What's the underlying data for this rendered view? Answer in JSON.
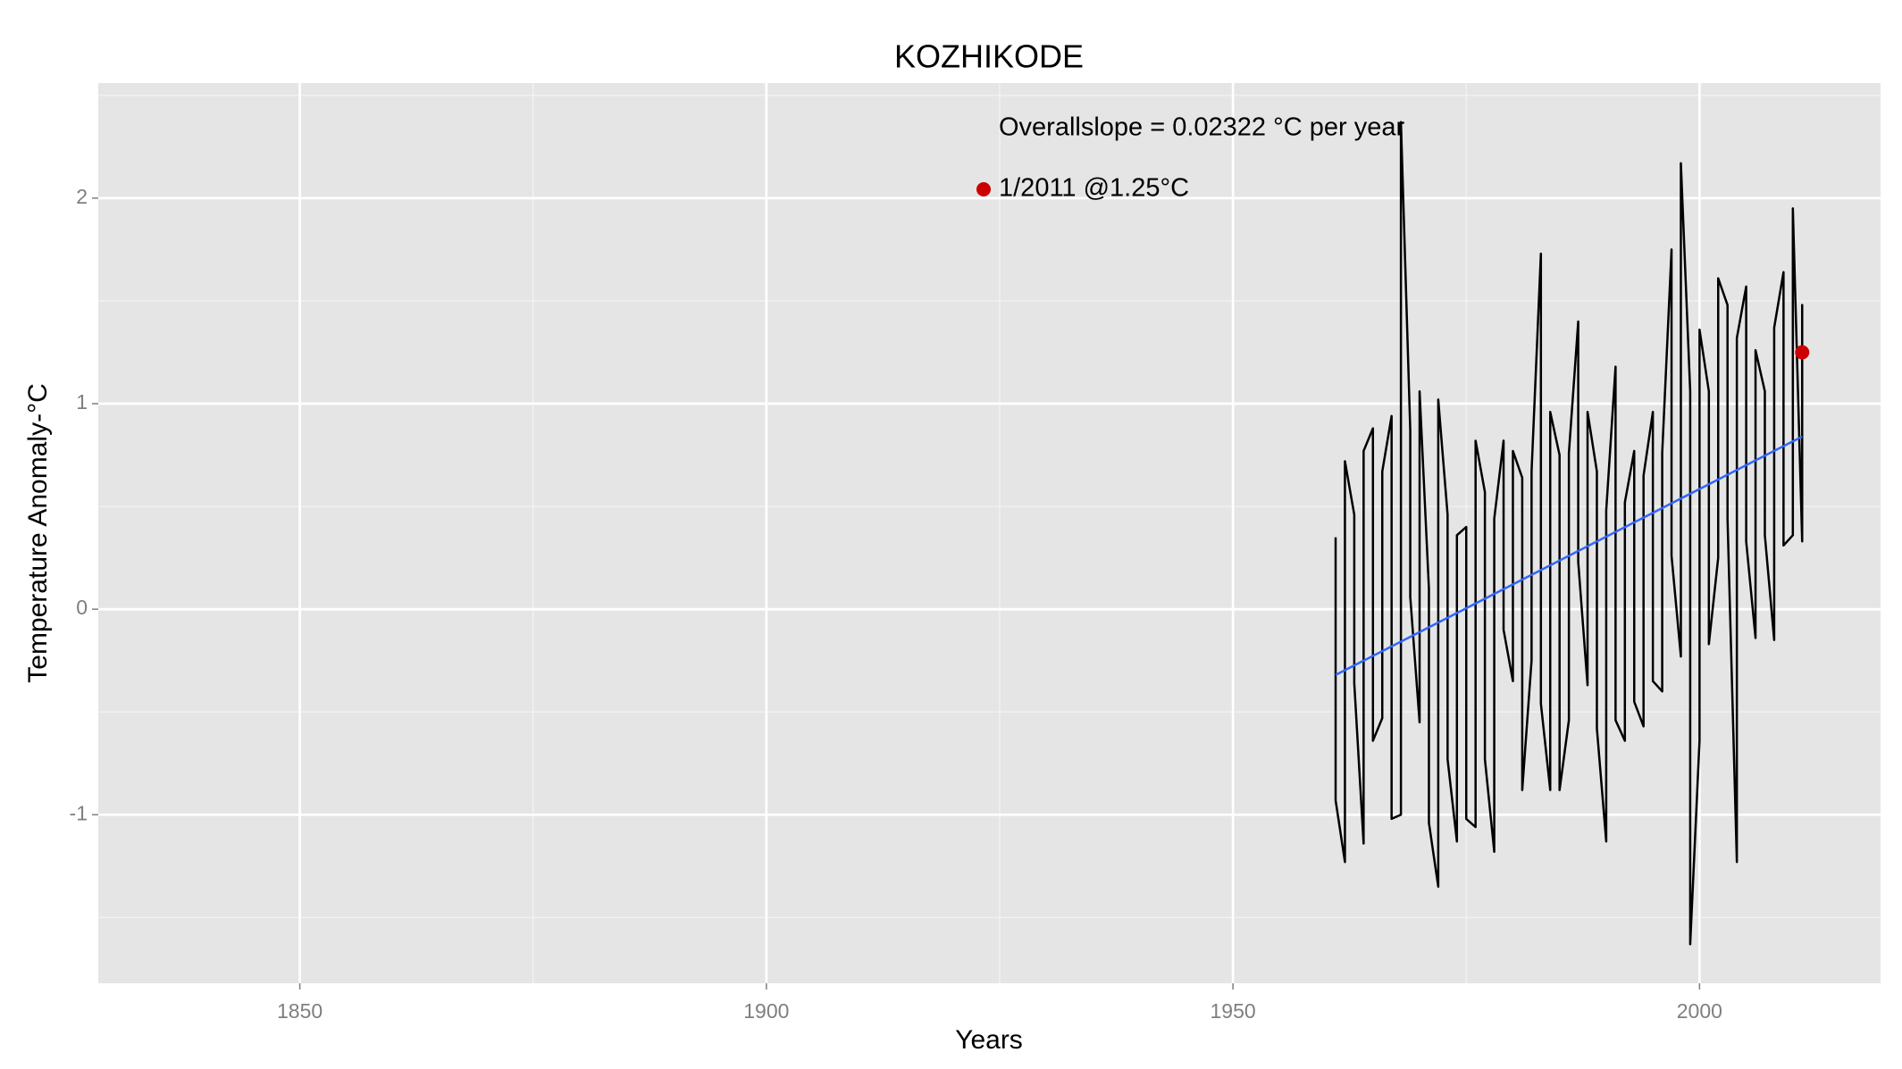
{
  "chart_data": {
    "type": "line",
    "title": "KOZHIKODE",
    "x_label": "Years",
    "y_label": "Temperature Anomaly-°C",
    "annotations": [
      "Overallslope = 0.02322 °C per year",
      "1/2011 @1.25°C"
    ],
    "xlim": [
      1828.4,
      2019.4
    ],
    "ylim": [
      -1.82,
      2.56
    ],
    "xticks": [
      1850,
      1900,
      1950,
      2000
    ],
    "yticks": [
      -1,
      0,
      1,
      2
    ],
    "grid": true,
    "series": [
      {
        "mode": "line",
        "color": "#000000",
        "x": [
          1961,
          1961,
          1962,
          1962,
          1963,
          1963,
          1964,
          1964,
          1965,
          1965,
          1966,
          1966,
          1967,
          1967,
          1968,
          1968,
          1969,
          1969,
          1970,
          1970,
          1971,
          1971,
          1972,
          1972,
          1973,
          1973,
          1974,
          1974,
          1975,
          1975,
          1976,
          1976,
          1977,
          1977,
          1978,
          1978,
          1979,
          1979,
          1980,
          1980,
          1981,
          1981,
          1982,
          1982,
          1983,
          1983,
          1984,
          1984,
          1985,
          1985,
          1986,
          1986,
          1987,
          1987,
          1988,
          1988,
          1989,
          1989,
          1990,
          1990,
          1991,
          1991,
          1992,
          1992,
          1993,
          1993,
          1994,
          1994,
          1995,
          1995,
          1996,
          1996,
          1997,
          1997,
          1998,
          1998,
          1999,
          1999,
          2000,
          2000,
          2001,
          2001,
          2002,
          2002,
          2003,
          2003,
          2004,
          2004,
          2005,
          2005,
          2006,
          2006,
          2007,
          2007,
          2008,
          2008,
          2009,
          2009,
          2010,
          2010,
          2011,
          2011,
          2011
        ],
        "values": [
          0.35,
          -0.93,
          -1.23,
          0.72,
          0.46,
          -0.36,
          -1.14,
          0.77,
          0.88,
          -0.64,
          -0.53,
          0.67,
          0.94,
          -1.02,
          -1.0,
          2.37,
          0.87,
          0.06,
          -0.55,
          1.06,
          0.1,
          -1.04,
          -1.35,
          1.02,
          0.46,
          -0.73,
          -1.13,
          0.36,
          0.4,
          -1.02,
          -1.06,
          0.82,
          0.57,
          -0.73,
          -1.18,
          0.44,
          0.82,
          -0.1,
          -0.35,
          0.77,
          0.64,
          -0.88,
          -0.25,
          0.67,
          1.73,
          -0.46,
          -0.88,
          0.96,
          0.75,
          -0.88,
          -0.54,
          0.76,
          1.4,
          0.23,
          -0.37,
          0.96,
          0.67,
          -0.58,
          -1.13,
          0.48,
          1.18,
          -0.54,
          -0.64,
          0.52,
          0.77,
          -0.45,
          -0.57,
          0.65,
          0.96,
          -0.35,
          -0.4,
          0.76,
          1.75,
          0.26,
          -0.23,
          2.17,
          1.06,
          -1.63,
          -0.64,
          1.36,
          1.06,
          -0.17,
          0.25,
          1.61,
          1.48,
          0.44,
          -1.23,
          1.32,
          1.57,
          0.33,
          -0.14,
          1.26,
          1.06,
          0.36,
          -0.15,
          1.37,
          1.64,
          0.31,
          0.36,
          1.95,
          0.33,
          1.48,
          1.25
        ]
      },
      {
        "mode": "line",
        "color": "#3366ff",
        "x": [
          1961,
          2011
        ],
        "values": [
          -0.32,
          0.84
        ]
      },
      {
        "mode": "point",
        "color": "#cc0000",
        "x": [
          2011
        ],
        "values": [
          1.25
        ]
      }
    ]
  }
}
